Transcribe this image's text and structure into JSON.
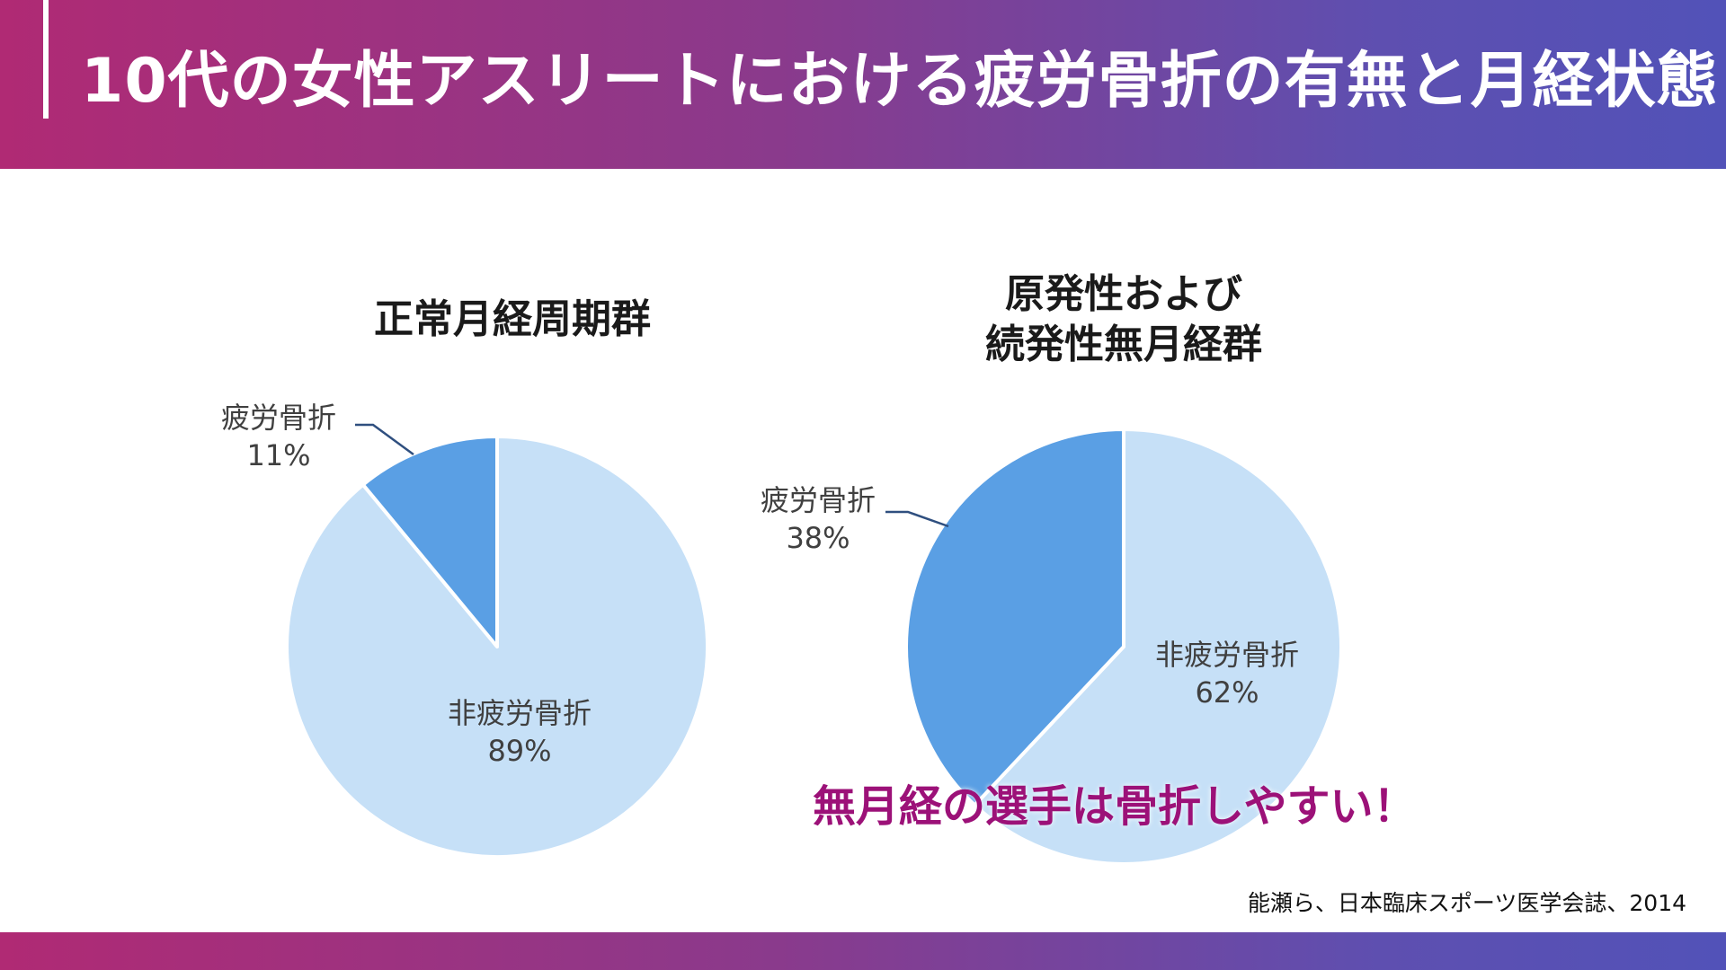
{
  "slide": {
    "title": "10代の女性アスリートにおける疲労骨折の有無と月経状態",
    "emphasis": "無月経の選手は骨折しやすい！",
    "source": "能瀬ら、日本臨床スポーツ医学会誌、2014"
  },
  "colors": {
    "fracture": "#5a9fe4",
    "non_fracture": "#c6e0f7",
    "leader_line": "#2f4f7f",
    "emphasis": "#9c1178"
  },
  "chart_data": [
    {
      "type": "pie",
      "title": "正常月経周期群",
      "slices": [
        {
          "label": "疲労骨折",
          "value": 11,
          "value_label": "11%"
        },
        {
          "label": "非疲労骨折",
          "value": 89,
          "value_label": "89%"
        }
      ]
    },
    {
      "type": "pie",
      "title": "原発性および\n続発性無月経群",
      "title_lines": [
        "原発性および",
        "続発性無月経群"
      ],
      "slices": [
        {
          "label": "疲労骨折",
          "value": 38,
          "value_label": "38%"
        },
        {
          "label": "非疲労骨折",
          "value": 62,
          "value_label": "62%"
        }
      ]
    }
  ]
}
